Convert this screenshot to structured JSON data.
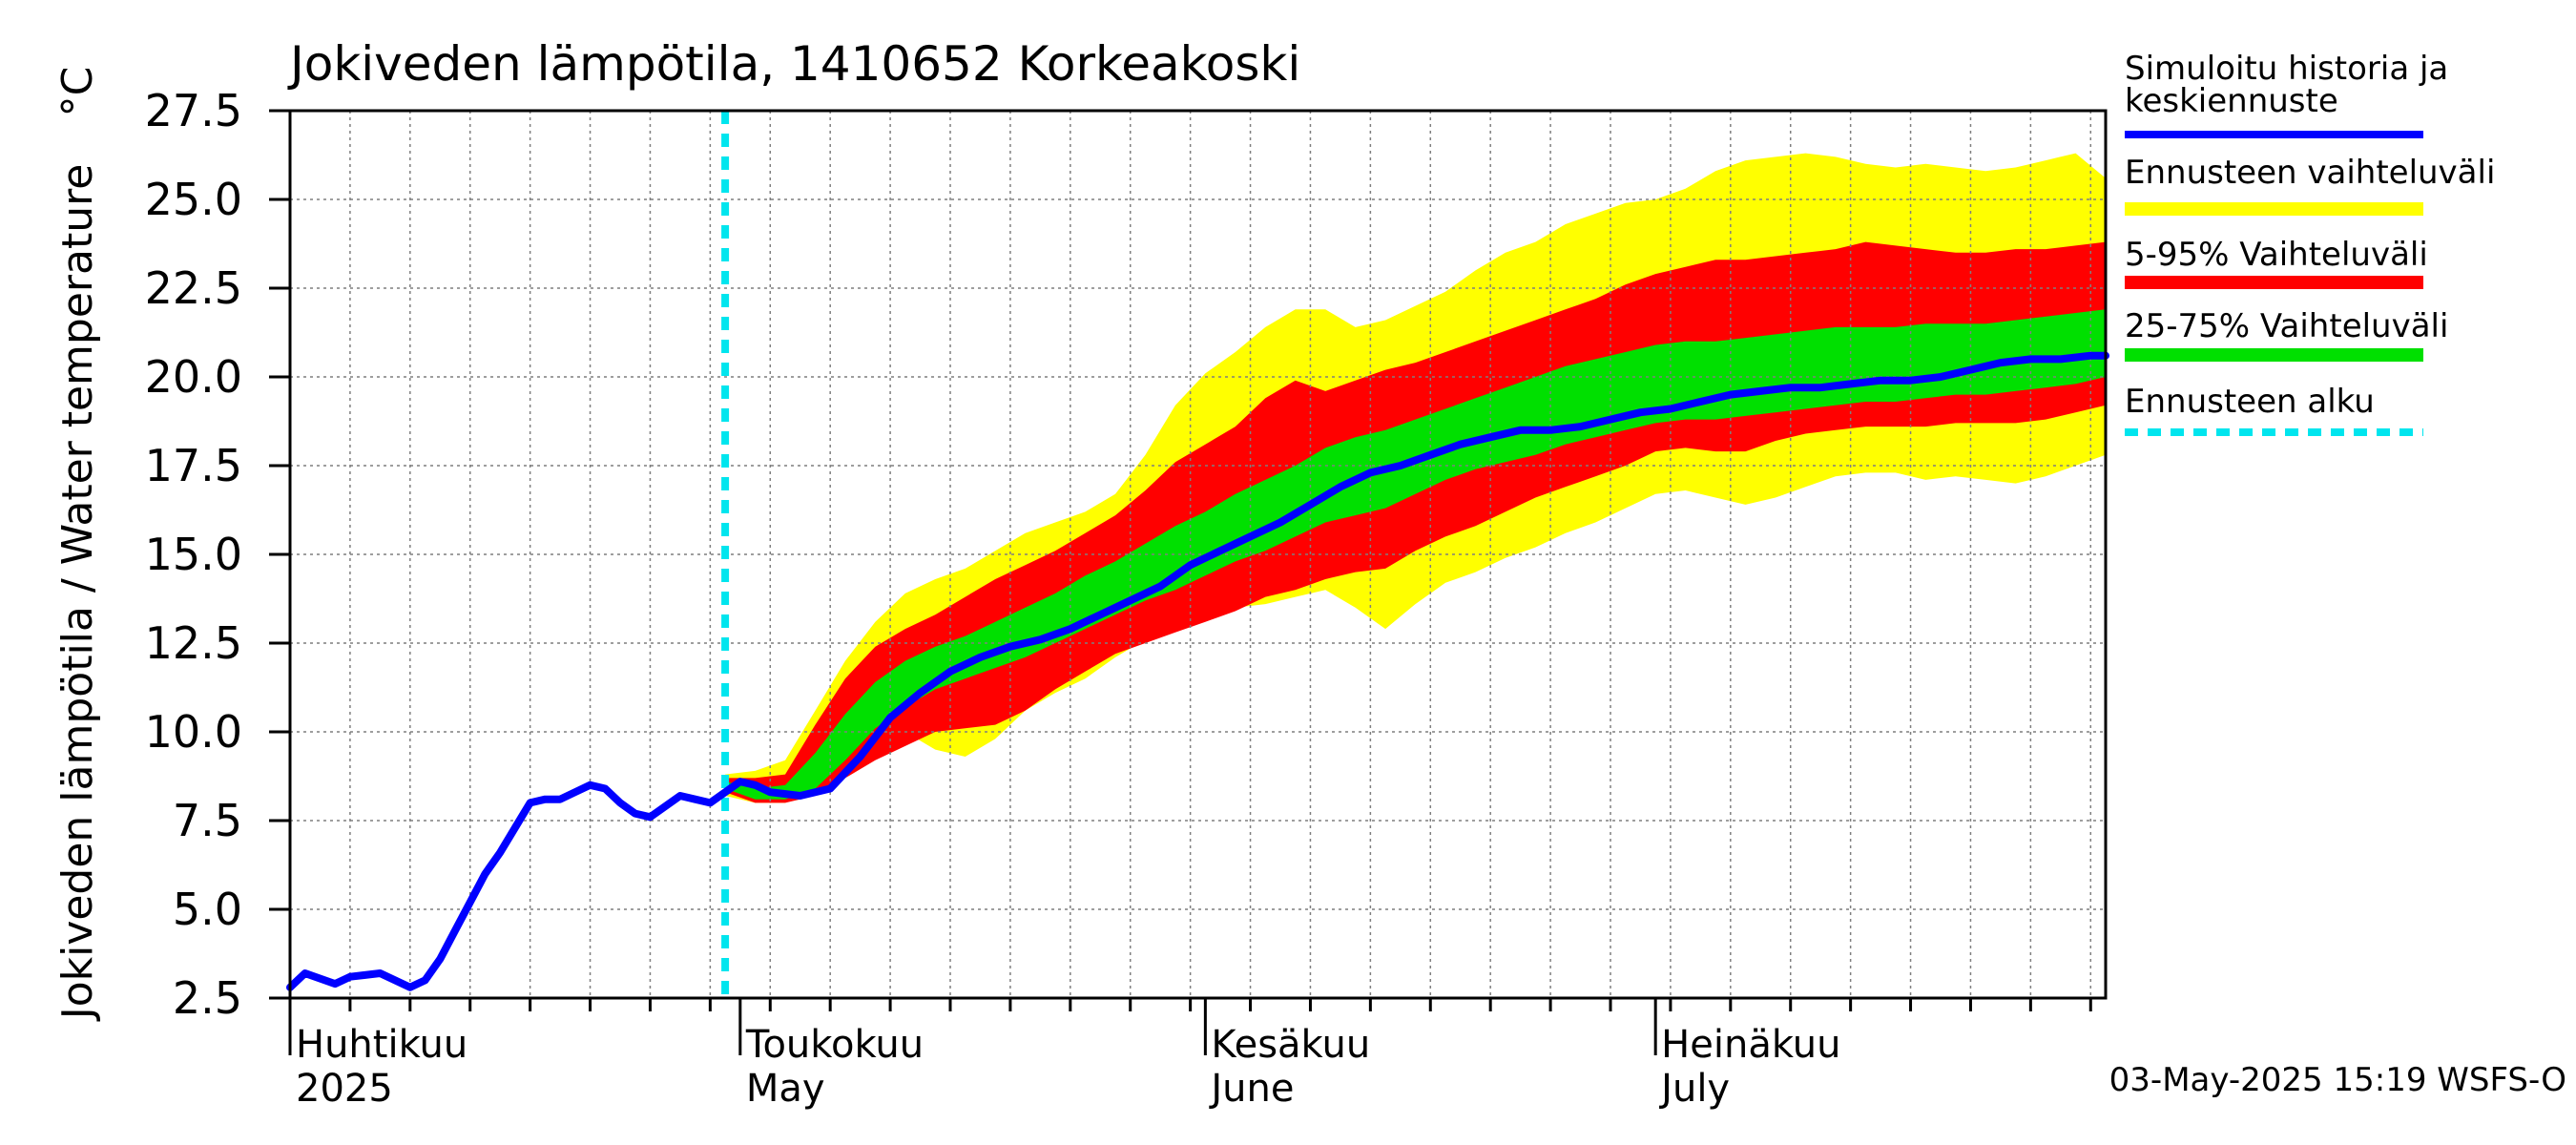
{
  "chart_data": {
    "type": "area",
    "title": "Jokiveden lämpötila, 1410652 Korkeakoski",
    "ylabel": "Jokiveden lämpötila / Water temperature",
    "yunit": "°C",
    "ylim": [
      2.5,
      27.5
    ],
    "yticks": [
      "2.5",
      "5.0",
      "7.5",
      "10.0",
      "12.5",
      "15.0",
      "17.5",
      "20.0",
      "22.5",
      "25.0",
      "27.5"
    ],
    "xlim": [
      "2025-04-01",
      "2025-07-31"
    ],
    "grid": true,
    "legend_position": "right",
    "month_labels": [
      {
        "date": "2025-04-01",
        "fi": "Huhtikuu",
        "en": "2025"
      },
      {
        "date": "2025-05-01",
        "fi": "Toukokuu",
        "en": "May"
      },
      {
        "date": "2025-06-01",
        "fi": "Kesäkuu",
        "en": "June"
      },
      {
        "date": "2025-07-01",
        "fi": "Heinäkuu",
        "en": "July"
      }
    ],
    "forecast_start": "2025-04-30",
    "legend": [
      {
        "label": "Simuloitu historia ja keskiennuste",
        "color": "#0000ff",
        "style": "line"
      },
      {
        "label": "Ennusteen vaihteluväli",
        "color": "#ffff00",
        "style": "band"
      },
      {
        "label": "5-95% Vaihteluväli",
        "color": "#ff0000",
        "style": "band"
      },
      {
        "label": "25-75% Vaihteluväli",
        "color": "#00e000",
        "style": "band"
      },
      {
        "label": "Ennusteen alku",
        "color": "#00e5ee",
        "style": "dashed"
      }
    ],
    "colors": {
      "yellow": "#ffff00",
      "red": "#ff0000",
      "green": "#00e000",
      "blue": "#0000ff",
      "cyan": "#00e5ee"
    },
    "series": [
      {
        "name": "Simuloitu historia ja keskiennuste",
        "x": [
          "2025-04-01",
          "2025-04-02",
          "2025-04-04",
          "2025-04-05",
          "2025-04-07",
          "2025-04-08",
          "2025-04-09",
          "2025-04-10",
          "2025-04-11",
          "2025-04-12",
          "2025-04-13",
          "2025-04-14",
          "2025-04-15",
          "2025-04-16",
          "2025-04-17",
          "2025-04-18",
          "2025-04-19",
          "2025-04-20",
          "2025-04-21",
          "2025-04-22",
          "2025-04-23",
          "2025-04-24",
          "2025-04-25",
          "2025-04-26",
          "2025-04-27",
          "2025-04-28",
          "2025-04-29",
          "2025-04-30",
          "2025-05-01",
          "2025-05-02",
          "2025-05-03",
          "2025-05-05",
          "2025-05-07",
          "2025-05-09",
          "2025-05-11",
          "2025-05-13",
          "2025-05-15",
          "2025-05-17",
          "2025-05-19",
          "2025-05-21",
          "2025-05-23",
          "2025-05-25",
          "2025-05-27",
          "2025-05-29",
          "2025-05-31",
          "2025-06-02",
          "2025-06-04",
          "2025-06-06",
          "2025-06-08",
          "2025-06-10",
          "2025-06-12",
          "2025-06-14",
          "2025-06-16",
          "2025-06-18",
          "2025-06-20",
          "2025-06-22",
          "2025-06-24",
          "2025-06-26",
          "2025-06-28",
          "2025-06-30",
          "2025-07-02",
          "2025-07-04",
          "2025-07-06",
          "2025-07-08",
          "2025-07-10",
          "2025-07-12",
          "2025-07-14",
          "2025-07-16",
          "2025-07-18",
          "2025-07-20",
          "2025-07-22",
          "2025-07-24",
          "2025-07-26",
          "2025-07-28",
          "2025-07-30",
          "2025-07-31"
        ],
        "values": [
          2.8,
          3.2,
          2.9,
          3.1,
          3.2,
          3.0,
          2.8,
          3.0,
          3.6,
          4.4,
          5.2,
          6.0,
          6.6,
          7.3,
          8.0,
          8.1,
          8.1,
          8.3,
          8.5,
          8.4,
          8.0,
          7.7,
          7.6,
          7.9,
          8.2,
          8.1,
          8.0,
          8.3,
          8.6,
          8.5,
          8.3,
          8.2,
          8.4,
          9.3,
          10.4,
          11.1,
          11.7,
          12.1,
          12.4,
          12.6,
          12.9,
          13.3,
          13.7,
          14.1,
          14.7,
          15.1,
          15.5,
          15.9,
          16.4,
          16.9,
          17.3,
          17.5,
          17.8,
          18.1,
          18.3,
          18.5,
          18.5,
          18.6,
          18.8,
          19.0,
          19.1,
          19.3,
          19.5,
          19.6,
          19.7,
          19.7,
          19.8,
          19.9,
          19.9,
          20.0,
          20.2,
          20.4,
          20.5,
          20.5,
          20.6,
          20.6
        ]
      }
    ],
    "bands": {
      "x": [
        "2025-04-30",
        "2025-05-02",
        "2025-05-04",
        "2025-05-06",
        "2025-05-08",
        "2025-05-10",
        "2025-05-12",
        "2025-05-14",
        "2025-05-16",
        "2025-05-18",
        "2025-05-20",
        "2025-05-22",
        "2025-05-24",
        "2025-05-26",
        "2025-05-28",
        "2025-05-30",
        "2025-06-01",
        "2025-06-03",
        "2025-06-05",
        "2025-06-07",
        "2025-06-09",
        "2025-06-11",
        "2025-06-13",
        "2025-06-15",
        "2025-06-17",
        "2025-06-19",
        "2025-06-21",
        "2025-06-23",
        "2025-06-25",
        "2025-06-27",
        "2025-06-29",
        "2025-07-01",
        "2025-07-03",
        "2025-07-05",
        "2025-07-07",
        "2025-07-09",
        "2025-07-11",
        "2025-07-13",
        "2025-07-15",
        "2025-07-17",
        "2025-07-19",
        "2025-07-21",
        "2025-07-23",
        "2025-07-25",
        "2025-07-27",
        "2025-07-29",
        "2025-07-31"
      ],
      "range_low": [
        8.2,
        8.0,
        8.0,
        8.4,
        9.0,
        9.8,
        10.0,
        9.5,
        9.3,
        9.8,
        10.6,
        11.1,
        11.5,
        12.1,
        12.6,
        12.9,
        13.2,
        13.5,
        13.6,
        13.8,
        14.0,
        13.5,
        12.9,
        13.6,
        14.2,
        14.5,
        14.9,
        15.2,
        15.6,
        15.9,
        16.3,
        16.7,
        16.8,
        16.6,
        16.4,
        16.6,
        16.9,
        17.2,
        17.3,
        17.3,
        17.1,
        17.2,
        17.1,
        17.0,
        17.2,
        17.5,
        17.8
      ],
      "p5": [
        8.3,
        8.0,
        8.0,
        8.2,
        8.7,
        9.2,
        9.6,
        10.0,
        10.1,
        10.2,
        10.6,
        11.2,
        11.7,
        12.2,
        12.5,
        12.8,
        13.1,
        13.4,
        13.8,
        14.0,
        14.3,
        14.5,
        14.6,
        15.1,
        15.5,
        15.8,
        16.2,
        16.6,
        16.9,
        17.2,
        17.5,
        17.9,
        18.0,
        17.9,
        17.9,
        18.2,
        18.4,
        18.5,
        18.6,
        18.6,
        18.6,
        18.7,
        18.7,
        18.7,
        18.8,
        19.0,
        19.2
      ],
      "p25": [
        8.4,
        8.1,
        8.1,
        8.4,
        9.2,
        10.1,
        10.7,
        11.2,
        11.5,
        11.8,
        12.1,
        12.5,
        12.9,
        13.3,
        13.7,
        14.0,
        14.4,
        14.8,
        15.1,
        15.5,
        15.9,
        16.1,
        16.3,
        16.7,
        17.1,
        17.4,
        17.6,
        17.8,
        18.1,
        18.3,
        18.5,
        18.7,
        18.8,
        18.8,
        18.9,
        19.0,
        19.1,
        19.2,
        19.3,
        19.3,
        19.4,
        19.5,
        19.5,
        19.6,
        19.7,
        19.8,
        20.0
      ],
      "p75": [
        8.6,
        8.4,
        8.5,
        9.4,
        10.5,
        11.4,
        12.0,
        12.4,
        12.7,
        13.1,
        13.5,
        13.9,
        14.4,
        14.8,
        15.3,
        15.8,
        16.2,
        16.7,
        17.1,
        17.5,
        18.0,
        18.3,
        18.5,
        18.8,
        19.1,
        19.4,
        19.7,
        20.0,
        20.3,
        20.5,
        20.7,
        20.9,
        21.0,
        21.0,
        21.1,
        21.2,
        21.3,
        21.4,
        21.4,
        21.4,
        21.5,
        21.5,
        21.5,
        21.6,
        21.7,
        21.8,
        21.9
      ],
      "p95": [
        8.7,
        8.7,
        8.8,
        10.2,
        11.5,
        12.4,
        12.9,
        13.3,
        13.8,
        14.3,
        14.7,
        15.1,
        15.6,
        16.1,
        16.8,
        17.6,
        18.1,
        18.6,
        19.4,
        19.9,
        19.6,
        19.9,
        20.2,
        20.4,
        20.7,
        21.0,
        21.3,
        21.6,
        21.9,
        22.2,
        22.6,
        22.9,
        23.1,
        23.3,
        23.3,
        23.4,
        23.5,
        23.6,
        23.8,
        23.7,
        23.6,
        23.5,
        23.5,
        23.6,
        23.6,
        23.7,
        23.8
      ],
      "range_high": [
        8.8,
        8.9,
        9.2,
        10.6,
        12.0,
        13.1,
        13.9,
        14.3,
        14.6,
        15.1,
        15.6,
        15.9,
        16.2,
        16.7,
        17.8,
        19.2,
        20.1,
        20.7,
        21.4,
        21.9,
        21.9,
        21.4,
        21.6,
        22.0,
        22.4,
        23.0,
        23.5,
        23.8,
        24.3,
        24.6,
        24.9,
        25.0,
        25.3,
        25.8,
        26.1,
        26.2,
        26.3,
        26.2,
        26.0,
        25.9,
        26.0,
        25.9,
        25.8,
        25.9,
        26.1,
        26.3,
        25.6
      ]
    },
    "timestamp": "03-May-2025 15:19 WSFS-O"
  }
}
